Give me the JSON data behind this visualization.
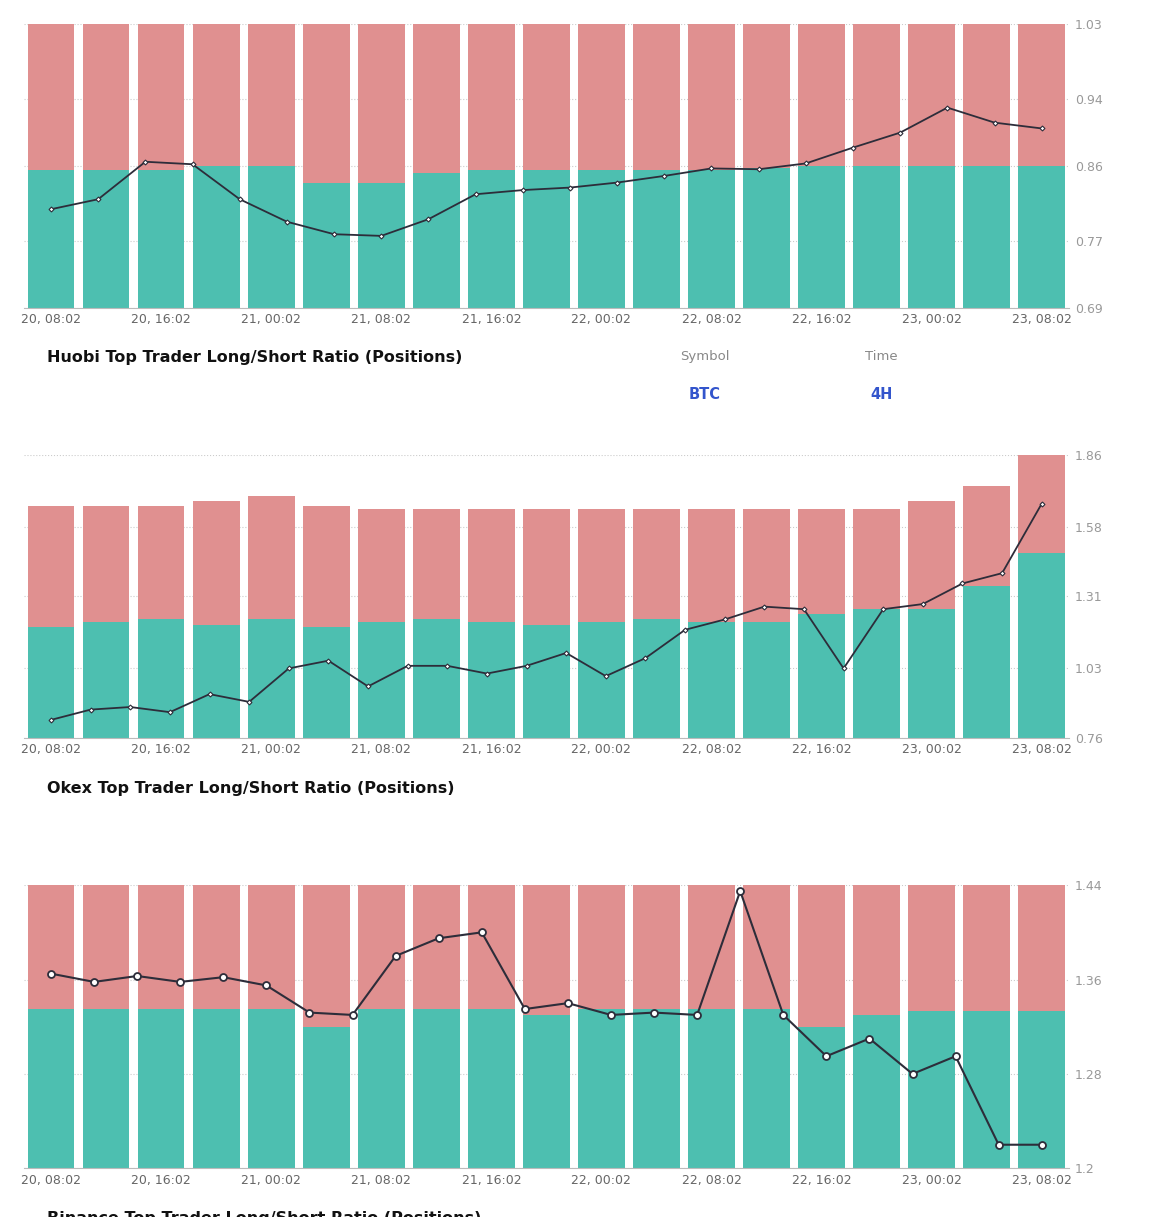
{
  "background_color": "#ffffff",
  "teal_color": "#4DBFB0",
  "pink_color": "#E09090",
  "line_color": "#2d2d3a",
  "chart1": {
    "title": "Huobi Top Trader Long/Short Ratio (Positions)",
    "symbol": "BTC",
    "time": "4H",
    "xlabels": [
      "20, 08:02",
      "20, 16:02",
      "21, 00:02",
      "21, 08:02",
      "21, 16:02",
      "22, 00:02",
      "22, 08:02",
      "22, 16:02",
      "23, 00:02",
      "23, 08:02"
    ],
    "xtick_positions": [
      0,
      2,
      4,
      6,
      8,
      10,
      12,
      14,
      16,
      18
    ],
    "n_bars": 19,
    "teal_heights": [
      0.855,
      0.855,
      0.855,
      0.86,
      0.86,
      0.84,
      0.84,
      0.852,
      0.855,
      0.855,
      0.855,
      0.855,
      0.855,
      0.858,
      0.86,
      0.86,
      0.86,
      0.86,
      0.86
    ],
    "total_heights": [
      1.03,
      1.03,
      1.03,
      1.03,
      1.03,
      1.03,
      1.03,
      1.03,
      1.03,
      1.03,
      1.03,
      1.03,
      1.03,
      1.03,
      1.03,
      1.03,
      1.03,
      1.03,
      1.03
    ],
    "line_values": [
      0.808,
      0.82,
      0.865,
      0.862,
      0.82,
      0.793,
      0.778,
      0.776,
      0.796,
      0.826,
      0.831,
      0.834,
      0.84,
      0.848,
      0.857,
      0.856,
      0.863,
      0.882,
      0.9,
      0.93,
      0.912,
      0.905
    ],
    "ylim": [
      0.69,
      1.03
    ],
    "yticks": [
      0.69,
      0.77,
      0.86,
      0.94,
      1.03
    ]
  },
  "chart2": {
    "title": "Okex Top Trader Long/Short Ratio (Positions)",
    "xlabels": [
      "20, 08:02",
      "20, 16:02",
      "21, 00:02",
      "21, 08:02",
      "21, 16:02",
      "22, 00:02",
      "22, 08:02",
      "22, 16:02",
      "23, 00:02",
      "23, 08:02"
    ],
    "xtick_positions": [
      0,
      2,
      4,
      6,
      8,
      10,
      12,
      14,
      16,
      18
    ],
    "n_bars": 19,
    "teal_heights": [
      1.19,
      1.21,
      1.22,
      1.2,
      1.22,
      1.19,
      1.21,
      1.22,
      1.21,
      1.2,
      1.21,
      1.22,
      1.21,
      1.21,
      1.24,
      1.26,
      1.26,
      1.35,
      1.48
    ],
    "total_heights": [
      1.66,
      1.66,
      1.66,
      1.68,
      1.7,
      1.66,
      1.65,
      1.65,
      1.65,
      1.65,
      1.65,
      1.65,
      1.65,
      1.65,
      1.65,
      1.65,
      1.68,
      1.74,
      1.86
    ],
    "line_values": [
      0.83,
      0.87,
      0.88,
      0.86,
      0.93,
      0.9,
      1.03,
      1.06,
      0.96,
      1.04,
      1.04,
      1.01,
      1.04,
      1.09,
      1.0,
      1.07,
      1.18,
      1.22,
      1.27,
      1.26,
      1.03,
      1.26,
      1.28,
      1.36,
      1.4,
      1.67
    ],
    "ylim": [
      0.76,
      1.86
    ],
    "yticks": [
      0.76,
      1.03,
      1.31,
      1.58,
      1.86
    ]
  },
  "chart3": {
    "title": "Binance Top Trader Long/Short Ratio (Positions)",
    "xlabels": [
      "20, 08:02",
      "20, 16:02",
      "21, 00:02",
      "21, 08:02",
      "21, 16:02",
      "22, 00:02",
      "22, 08:02",
      "22, 16:02",
      "23, 00:02",
      "23, 08:02"
    ],
    "xtick_positions": [
      0,
      2,
      4,
      6,
      8,
      10,
      12,
      14,
      16,
      18
    ],
    "n_bars": 19,
    "teal_heights": [
      1.335,
      1.335,
      1.335,
      1.335,
      1.335,
      1.32,
      1.335,
      1.335,
      1.335,
      1.33,
      1.335,
      1.335,
      1.335,
      1.335,
      1.32,
      1.33,
      1.333,
      1.333,
      1.333
    ],
    "total_heights": [
      1.44,
      1.44,
      1.44,
      1.44,
      1.44,
      1.44,
      1.44,
      1.44,
      1.44,
      1.44,
      1.44,
      1.44,
      1.44,
      1.44,
      1.44,
      1.44,
      1.44,
      1.44,
      1.44
    ],
    "line_values": [
      1.365,
      1.358,
      1.363,
      1.358,
      1.362,
      1.355,
      1.332,
      1.33,
      1.38,
      1.395,
      1.4,
      1.335,
      1.34,
      1.33,
      1.332,
      1.33,
      1.435,
      1.33,
      1.295,
      1.31,
      1.28,
      1.295,
      1.22,
      1.22
    ],
    "ylim": [
      1.2,
      1.44
    ],
    "yticks": [
      1.2,
      1.28,
      1.36,
      1.44
    ]
  }
}
